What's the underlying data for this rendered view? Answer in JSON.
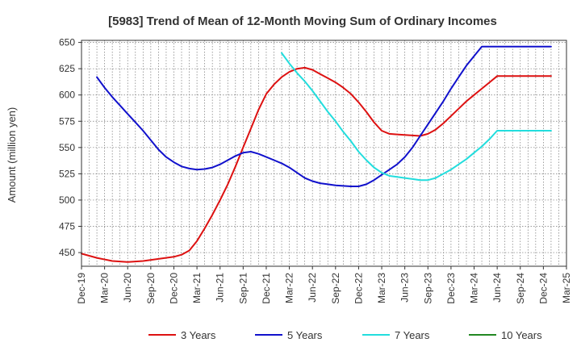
{
  "chart_data": {
    "type": "line",
    "title": "[5983]  Trend of Mean of 12-Month Moving Sum of Ordinary Incomes",
    "ylabel": "Amount (million yen)",
    "xlabel": "",
    "ylim": [
      437,
      652
    ],
    "yticks": [
      450,
      475,
      500,
      525,
      550,
      575,
      600,
      625,
      650
    ],
    "x_tick_labels": [
      "Dec-19",
      "Mar-20",
      "Jun-20",
      "Sep-20",
      "Dec-20",
      "Mar-21",
      "Jun-21",
      "Sep-21",
      "Dec-21",
      "Mar-22",
      "Jun-22",
      "Sep-22",
      "Dec-22",
      "Mar-23",
      "Jun-23",
      "Sep-23",
      "Dec-23",
      "Mar-24",
      "Jun-24",
      "Sep-24",
      "Dec-24",
      "Mar-25"
    ],
    "x_range_months": [
      0,
      63
    ],
    "grid": true,
    "legend_position": "bottom",
    "series": [
      {
        "name": "3 Years",
        "color": "#dd1111",
        "x": [
          0,
          2,
          4,
          6,
          8,
          10,
          12,
          13,
          14,
          15,
          16,
          17,
          18,
          19,
          20,
          21,
          22,
          23,
          24,
          25,
          26,
          27,
          28,
          29,
          30,
          31,
          32,
          33,
          34,
          35,
          36,
          37,
          38,
          39,
          40,
          41,
          42,
          43,
          44,
          45,
          46,
          47,
          48,
          49,
          50,
          51,
          52,
          53,
          54,
          55,
          56,
          57,
          58,
          59,
          60,
          61
        ],
        "values": [
          449,
          445,
          442,
          441,
          442,
          444,
          446,
          448,
          452,
          461,
          473,
          486,
          500,
          515,
          532,
          550,
          568,
          586,
          601,
          610,
          617,
          622,
          625,
          626,
          624,
          620,
          616,
          612,
          607,
          601,
          593,
          584,
          574,
          566,
          563,
          562.5,
          562,
          561.5,
          561,
          563,
          567,
          573,
          580,
          587,
          594,
          600,
          606,
          612,
          618,
          618,
          618,
          618,
          618,
          618,
          618,
          618
        ]
      },
      {
        "name": "5 Years",
        "color": "#1111cc",
        "x": [
          2,
          3,
          4,
          5,
          6,
          7,
          8,
          9,
          10,
          11,
          12,
          13,
          14,
          15,
          16,
          17,
          18,
          19,
          20,
          21,
          22,
          23,
          24,
          25,
          26,
          27,
          28,
          29,
          30,
          31,
          32,
          33,
          34,
          35,
          36,
          37,
          38,
          39,
          40,
          41,
          42,
          43,
          44,
          45,
          46,
          47,
          48,
          49,
          50,
          51,
          52,
          53,
          54,
          55,
          56,
          57,
          58,
          59,
          60,
          61
        ],
        "values": [
          617,
          607,
          598,
          590,
          582,
          574,
          566,
          557,
          548,
          541,
          536,
          532,
          530,
          529,
          529.5,
          531,
          534,
          538,
          542,
          545,
          546,
          544,
          541,
          538,
          535,
          531,
          526,
          521,
          518,
          516,
          515,
          514,
          513.5,
          513,
          513,
          515,
          519,
          524,
          529,
          534,
          541,
          550,
          561,
          572,
          583,
          594,
          606,
          617,
          628,
          637,
          646,
          646,
          646,
          646,
          646,
          646,
          646,
          646,
          646,
          646
        ]
      },
      {
        "name": "7 Years",
        "color": "#22dddd",
        "x": [
          26,
          27,
          28,
          29,
          30,
          31,
          32,
          33,
          34,
          35,
          36,
          37,
          38,
          39,
          40,
          41,
          42,
          43,
          44,
          45,
          46,
          47,
          48,
          49,
          50,
          51,
          52,
          53,
          54,
          55,
          56,
          57,
          58,
          59,
          60,
          61
        ],
        "values": [
          640,
          630,
          621,
          613,
          604,
          594,
          584,
          575,
          565,
          556,
          546,
          538,
          531,
          526,
          523,
          522,
          521,
          520,
          519,
          519,
          521,
          525,
          529,
          534,
          539,
          545,
          551,
          558,
          566,
          566,
          566,
          566,
          566,
          566,
          566,
          566
        ]
      },
      {
        "name": "10 Years",
        "color": "#228822",
        "x": [],
        "values": []
      }
    ]
  }
}
